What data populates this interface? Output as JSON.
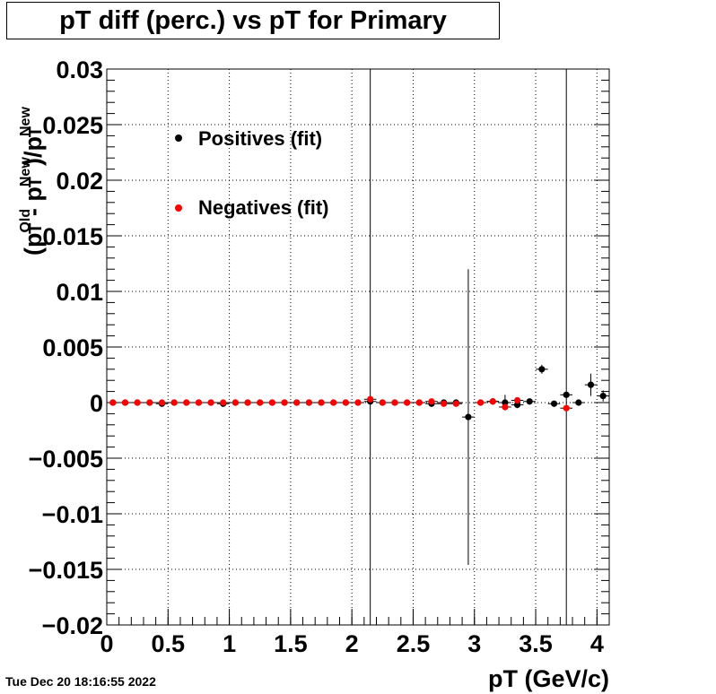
{
  "title": "pT diff (perc.) vs pT for Primary",
  "timestamp": "Tue Dec 20 18:16:55 2022",
  "chart_data": {
    "type": "scatter",
    "title": "pT diff (perc.) vs pT for Primary",
    "xlabel": "pT (GeV/c)",
    "ylabel": "(p_T^Old - p_T^New)/p_T^New",
    "xlim": [
      0,
      4.1
    ],
    "ylim": [
      -0.02,
      0.03
    ],
    "grid": true,
    "legend_position": "top-left",
    "x_ticks": [
      "0",
      "0.5",
      "1",
      "1.5",
      "2",
      "2.5",
      "3",
      "3.5",
      "4"
    ],
    "y_ticks": [
      "−0.02",
      "−0.015",
      "−0.01",
      "−0.005",
      "0",
      "0.005",
      "0.01",
      "0.015",
      "0.02",
      "0.025",
      "0.03"
    ],
    "series": [
      {
        "name": "Positives (fit)",
        "color": "#000000",
        "points": [
          {
            "x": 0.05,
            "y": 0.0,
            "err": 5e-05
          },
          {
            "x": 0.15,
            "y": 0.0,
            "err": 5e-05
          },
          {
            "x": 0.25,
            "y": 0.0,
            "err": 5e-05
          },
          {
            "x": 0.35,
            "y": 0.0,
            "err": 5e-05
          },
          {
            "x": 0.45,
            "y": -0.0001,
            "err": 5e-05
          },
          {
            "x": 0.55,
            "y": 0.0,
            "err": 5e-05
          },
          {
            "x": 0.65,
            "y": 0.0,
            "err": 5e-05
          },
          {
            "x": 0.75,
            "y": 0.0,
            "err": 5e-05
          },
          {
            "x": 0.85,
            "y": 0.0,
            "err": 5e-05
          },
          {
            "x": 0.95,
            "y": -0.0001,
            "err": 5e-05
          },
          {
            "x": 1.05,
            "y": 0.0,
            "err": 5e-05
          },
          {
            "x": 1.15,
            "y": 0.0,
            "err": 5e-05
          },
          {
            "x": 1.25,
            "y": 0.0,
            "err": 5e-05
          },
          {
            "x": 1.35,
            "y": 0.0,
            "err": 5e-05
          },
          {
            "x": 1.45,
            "y": 0.0,
            "err": 5e-05
          },
          {
            "x": 1.55,
            "y": 0.0,
            "err": 5e-05
          },
          {
            "x": 1.65,
            "y": 0.0,
            "err": 5e-05
          },
          {
            "x": 1.75,
            "y": 0.0,
            "err": 5e-05
          },
          {
            "x": 1.85,
            "y": 0.0,
            "err": 5e-05
          },
          {
            "x": 1.95,
            "y": 0.0,
            "err": 5e-05
          },
          {
            "x": 2.05,
            "y": 0.0,
            "err": 5e-05
          },
          {
            "x": 2.15,
            "y": 0.0001,
            "err": 0.03
          },
          {
            "x": 2.25,
            "y": 0.0,
            "err": 5e-05
          },
          {
            "x": 2.35,
            "y": 0.0,
            "err": 5e-05
          },
          {
            "x": 2.45,
            "y": 0.0,
            "err": 5e-05
          },
          {
            "x": 2.55,
            "y": 0.0,
            "err": 5e-05
          },
          {
            "x": 2.65,
            "y": -0.0001,
            "err": 0.0001
          },
          {
            "x": 2.75,
            "y": 0.0,
            "err": 5e-05
          },
          {
            "x": 2.85,
            "y": 0.0,
            "err": 5e-05
          },
          {
            "x": 2.95,
            "y": -0.0013,
            "err": 0.0133
          },
          {
            "x": 3.05,
            "y": 0.0,
            "err": 0.0001
          },
          {
            "x": 3.15,
            "y": 0.0001,
            "err": 0.0001
          },
          {
            "x": 3.25,
            "y": 0.0,
            "err": 0.0007
          },
          {
            "x": 3.35,
            "y": -0.0002,
            "err": 0.0003
          },
          {
            "x": 3.45,
            "y": 0.0001,
            "err": 0.0002
          },
          {
            "x": 3.55,
            "y": 0.003,
            "err": 0.0004
          },
          {
            "x": 3.65,
            "y": -0.0001,
            "err": 0.0002
          },
          {
            "x": 3.75,
            "y": 0.0007,
            "err": 0.03
          },
          {
            "x": 3.85,
            "y": 0.0,
            "err": 0.0002
          },
          {
            "x": 3.95,
            "y": 0.0016,
            "err": 0.001
          },
          {
            "x": 4.05,
            "y": 0.0006,
            "err": 0.0005
          }
        ]
      },
      {
        "name": "Negatives (fit)",
        "color": "#ff0000",
        "points": [
          {
            "x": 0.05,
            "y": 0.0,
            "err": 5e-05
          },
          {
            "x": 0.15,
            "y": 0.0,
            "err": 5e-05
          },
          {
            "x": 0.25,
            "y": 0.0,
            "err": 5e-05
          },
          {
            "x": 0.35,
            "y": 0.0,
            "err": 5e-05
          },
          {
            "x": 0.45,
            "y": 0.0,
            "err": 5e-05
          },
          {
            "x": 0.55,
            "y": 0.0,
            "err": 5e-05
          },
          {
            "x": 0.65,
            "y": 0.0,
            "err": 5e-05
          },
          {
            "x": 0.75,
            "y": 0.0,
            "err": 5e-05
          },
          {
            "x": 0.85,
            "y": 0.0,
            "err": 5e-05
          },
          {
            "x": 0.95,
            "y": 0.0,
            "err": 5e-05
          },
          {
            "x": 1.05,
            "y": 0.0,
            "err": 5e-05
          },
          {
            "x": 1.15,
            "y": 0.0,
            "err": 5e-05
          },
          {
            "x": 1.25,
            "y": 0.0,
            "err": 5e-05
          },
          {
            "x": 1.35,
            "y": 0.0,
            "err": 5e-05
          },
          {
            "x": 1.45,
            "y": 0.0,
            "err": 5e-05
          },
          {
            "x": 1.55,
            "y": 0.0,
            "err": 5e-05
          },
          {
            "x": 1.65,
            "y": 0.0,
            "err": 5e-05
          },
          {
            "x": 1.75,
            "y": 0.0,
            "err": 5e-05
          },
          {
            "x": 1.85,
            "y": 0.0,
            "err": 5e-05
          },
          {
            "x": 1.95,
            "y": 0.0,
            "err": 5e-05
          },
          {
            "x": 2.05,
            "y": 0.0,
            "err": 5e-05
          },
          {
            "x": 2.15,
            "y": 0.0003,
            "err": 0.0001
          },
          {
            "x": 2.25,
            "y": 0.0,
            "err": 5e-05
          },
          {
            "x": 2.35,
            "y": 0.0,
            "err": 5e-05
          },
          {
            "x": 2.45,
            "y": 0.0,
            "err": 5e-05
          },
          {
            "x": 2.55,
            "y": 0.0,
            "err": 5e-05
          },
          {
            "x": 2.65,
            "y": 0.0001,
            "err": 0.0001
          },
          {
            "x": 2.75,
            "y": -0.0001,
            "err": 5e-05
          },
          {
            "x": 2.85,
            "y": -0.0001,
            "err": 5e-05
          },
          {
            "x": 3.05,
            "y": 0.0,
            "err": 0.0001
          },
          {
            "x": 3.15,
            "y": 0.0001,
            "err": 0.0001
          },
          {
            "x": 3.25,
            "y": -0.0004,
            "err": 0.0002
          },
          {
            "x": 3.35,
            "y": 0.0002,
            "err": 0.0001
          },
          {
            "x": 3.75,
            "y": -0.0005,
            "err": 0.0002
          }
        ]
      }
    ]
  }
}
